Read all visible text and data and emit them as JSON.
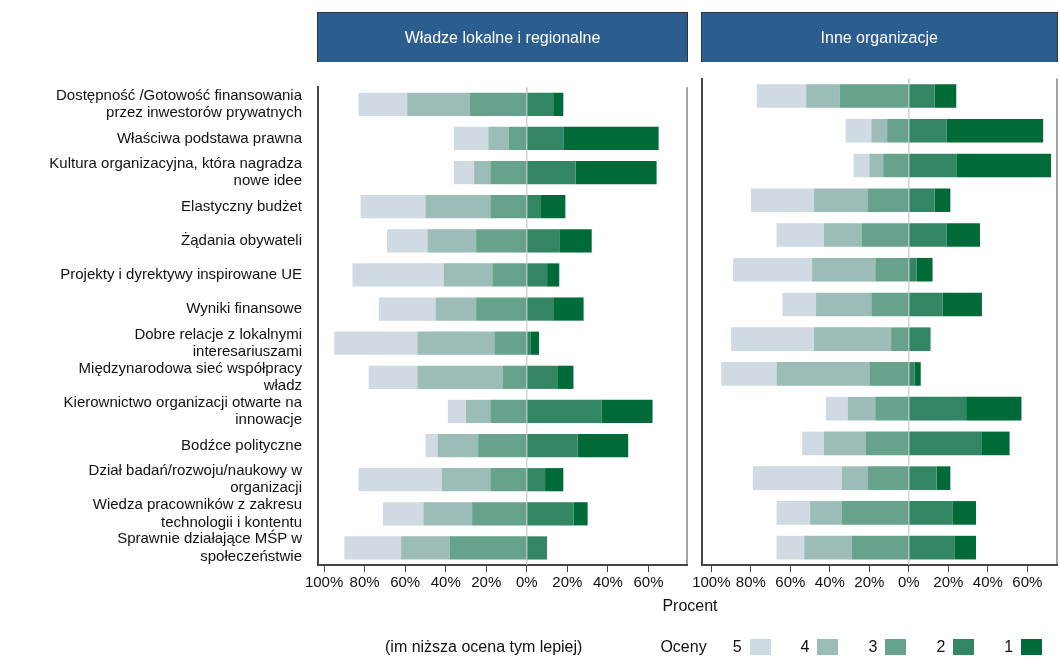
{
  "chart_data": [
    {
      "type": "bar",
      "title": "Władze lokalne i regionalne",
      "xlabel": "Procent",
      "legend_title": "Oceny",
      "annotations": [
        "(im niższa ocena tym lepiej)"
      ],
      "orientation": "horizontal",
      "stacked": true,
      "grid": false,
      "legend": "bottom",
      "categories": [
        "Dostępność /Gotowość finansowania przez inwestorów prywatnych",
        "Właściwa podstawa prawna",
        "Kultura organizacyjna, która nagradza nowe idee",
        "Elastyczny budżet",
        "Żądania obywateli",
        "Projekty i dyrektywy inspirowane UE",
        "Wyniki finansowe",
        "Dobre relacje z lokalnymi interesariuszami",
        "Międzynarodowa sieć współpracy władz",
        "Kierownictwo organizacji otwarte na innowacje",
        "Bodźce polityczne",
        "Dział badań/rozwoju/naukowy w organizacji",
        "Wiedza pracowników z zakresu technologii i kontentu",
        "Sprawnie działające MŚP w społeczeństwie"
      ],
      "xlim": [
        -103,
        79
      ],
      "xticks": [
        {
          "value": -100,
          "label": "100%"
        },
        {
          "value": -80,
          "label": "80%"
        },
        {
          "value": -60,
          "label": "60%"
        },
        {
          "value": -40,
          "label": "40%"
        },
        {
          "value": -20,
          "label": "20%"
        },
        {
          "value": 0,
          "label": "0%"
        },
        {
          "value": 20,
          "label": "20%"
        },
        {
          "value": 40,
          "label": "40%"
        },
        {
          "value": 60,
          "label": "60%"
        }
      ],
      "ref_lines": [
        {
          "axis": "x",
          "value": 0,
          "color": "#c8c8c8"
        }
      ],
      "series": [
        {
          "name": "3",
          "color": "#66a28c",
          "values": [
            -28,
            -9,
            -18,
            -18,
            -25,
            -17,
            -25,
            -16,
            -12,
            -18,
            -24,
            -18,
            -27,
            -38
          ]
        },
        {
          "name": "4",
          "color": "#9cbcb8",
          "values": [
            -31,
            -10,
            -8,
            -32,
            -24,
            -24,
            -20,
            -38,
            -42,
            -12,
            -20,
            -24,
            -24,
            -24
          ]
        },
        {
          "name": "5",
          "color": "#cfdae2",
          "values": [
            -24,
            -17,
            -10,
            -32,
            -20,
            -45,
            -28,
            -41,
            -24,
            -9,
            -6,
            -41,
            -20,
            -28
          ]
        },
        {
          "name": "2",
          "color": "#338663",
          "values": [
            13,
            18,
            24,
            7,
            16,
            10,
            13,
            2,
            15,
            37,
            25,
            9,
            23,
            10
          ]
        },
        {
          "name": "1",
          "color": "#006b38",
          "values": [
            5,
            47,
            40,
            12,
            16,
            6,
            15,
            4,
            8,
            25,
            25,
            9,
            7,
            null
          ]
        }
      ]
    },
    {
      "type": "bar",
      "title": "Inne organizacje",
      "orientation": "horizontal",
      "stacked": true,
      "grid": false,
      "categories": [
        null,
        null,
        null,
        null,
        null,
        null,
        null,
        null,
        null,
        null,
        null,
        null,
        null,
        null
      ],
      "xlim": [
        -105,
        75
      ],
      "xticks": [
        {
          "value": -100,
          "label": "100%"
        },
        {
          "value": -80,
          "label": "80%"
        },
        {
          "value": -60,
          "label": "60%"
        },
        {
          "value": -40,
          "label": "40%"
        },
        {
          "value": -20,
          "label": "20%"
        },
        {
          "value": 0,
          "label": "0%"
        },
        {
          "value": 20,
          "label": "20%"
        },
        {
          "value": 40,
          "label": "40%"
        },
        {
          "value": 60,
          "label": "60%"
        }
      ],
      "ref_lines": [
        {
          "axis": "x",
          "value": 0,
          "color": "#c8c8c8"
        }
      ],
      "series": [
        {
          "name": "3",
          "color": "#66a28c",
          "values": [
            -35,
            -11,
            -13,
            -21,
            -24,
            -17,
            -19,
            -9,
            -20,
            -17,
            -22,
            -21,
            -34,
            -29
          ]
        },
        {
          "name": "4",
          "color": "#9cbcb8",
          "values": [
            -17,
            -8,
            -7,
            -27,
            -19,
            -32,
            -28,
            -39,
            -47,
            -14,
            -21,
            -13,
            -16,
            -24
          ]
        },
        {
          "name": "5",
          "color": "#cfdae2",
          "values": [
            -25,
            -13,
            -8,
            -32,
            -24,
            -40,
            -17,
            -42,
            -28,
            -11,
            -11,
            -45,
            -17,
            -14
          ]
        },
        {
          "name": "2",
          "color": "#338663",
          "values": [
            13,
            19,
            24,
            13,
            19,
            4,
            17,
            11,
            3,
            29,
            37,
            14,
            22,
            23
          ]
        },
        {
          "name": "1",
          "color": "#006b38",
          "values": [
            11,
            49,
            48,
            8,
            17,
            8,
            20,
            null,
            3,
            28,
            14,
            7,
            12,
            11
          ]
        }
      ]
    }
  ]
}
